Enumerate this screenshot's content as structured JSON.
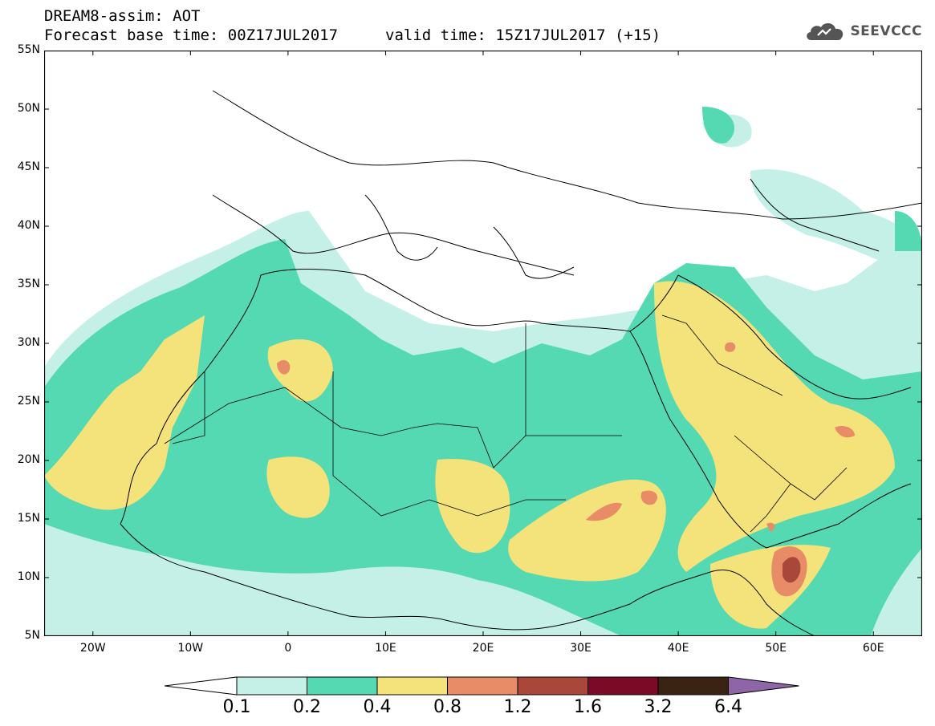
{
  "header": {
    "title": "DREAM8-assim: AOT",
    "base_time": "Forecast base time: 00Z17JUL2017",
    "valid_time": "valid time: 15Z17JUL2017 (+15)"
  },
  "logo": {
    "text": "SEEVCCC",
    "icon": "cloud-icon"
  },
  "map": {
    "variable": "Aerosol Optical Thickness",
    "lon_range": [
      -25,
      65
    ],
    "lat_range": [
      5,
      55
    ],
    "lat_ticks": [
      "55N",
      "50N",
      "45N",
      "40N",
      "35N",
      "30N",
      "25N",
      "20N",
      "15N",
      "10N",
      "5N"
    ],
    "lon_ticks": [
      "20W",
      "10W",
      "0",
      "10E",
      "20E",
      "30E",
      "40E",
      "50E",
      "60E"
    ],
    "lon_tick_values": [
      -20,
      -10,
      0,
      10,
      20,
      30,
      40,
      50,
      60
    ],
    "lat_tick_values": [
      55,
      50,
      45,
      40,
      35,
      30,
      25,
      20,
      15,
      10,
      5
    ]
  },
  "colorbar": {
    "levels": [
      "0.1",
      "0.2",
      "0.4",
      "0.8",
      "1.2",
      "1.6",
      "3.2",
      "6.4"
    ],
    "colors": [
      "#ffffff",
      "#c4f0e8",
      "#55d9b2",
      "#f4e27a",
      "#e88c68",
      "#a8473a",
      "#7a0a25",
      "#3b2314",
      "#8e66a8"
    ]
  }
}
